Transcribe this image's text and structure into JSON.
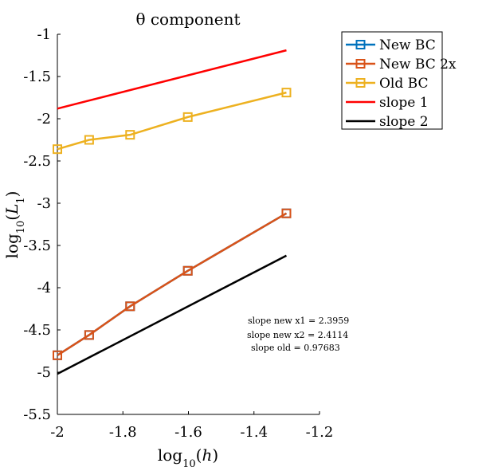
{
  "chart_data": {
    "type": "line",
    "title": "θ component",
    "xlabel": "log10(h)",
    "ylabel": "log10(L1)",
    "xlim": [
      -2,
      -1.2
    ],
    "ylim": [
      -5.5,
      -1
    ],
    "xticks": [
      -2,
      -1.8,
      -1.6,
      -1.4,
      -1.2
    ],
    "yticks": [
      -1,
      -1.5,
      -2,
      -2.5,
      -3,
      -3.5,
      -4,
      -4.5,
      -5,
      -5.5
    ],
    "xtick_labels": [
      "-2",
      "-1.8",
      "-1.6",
      "-1.4",
      "-1.2"
    ],
    "ytick_labels": [
      "-1",
      "-1.5",
      "-2",
      "-2.5",
      "-3",
      "-3.5",
      "-4",
      "-4.5",
      "-5",
      "-5.5"
    ],
    "grid": false,
    "legend_position": "top-right outside",
    "series": [
      {
        "name": "New BC",
        "color": "#0072BD",
        "marker": "square",
        "x": [
          -2.0,
          -1.903,
          -1.778,
          -1.602,
          -1.301
        ],
        "y": [
          -4.8,
          -4.56,
          -4.22,
          -3.8,
          -3.12
        ]
      },
      {
        "name": "New BC 2x",
        "color": "#D95319",
        "marker": "square",
        "x": [
          -2.0,
          -1.903,
          -1.778,
          -1.602,
          -1.301
        ],
        "y": [
          -4.8,
          -4.56,
          -4.22,
          -3.8,
          -3.12
        ]
      },
      {
        "name": "Old BC",
        "color": "#EDB120",
        "marker": "square",
        "x": [
          -2.0,
          -1.903,
          -1.778,
          -1.602,
          -1.301
        ],
        "y": [
          -2.36,
          -2.25,
          -2.19,
          -1.98,
          -1.69
        ]
      },
      {
        "name": "slope 1",
        "color": "#FF0000",
        "marker": "none",
        "x": [
          -2.0,
          -1.301
        ],
        "y": [
          -1.88,
          -1.19
        ]
      },
      {
        "name": "slope 2",
        "color": "#000000",
        "marker": "none",
        "x": [
          -2.0,
          -1.301
        ],
        "y": [
          -5.02,
          -3.62
        ]
      }
    ],
    "annotations": [
      "slope new x1 = 2.3959",
      "slope new x2 = 2.4114",
      "slope old = 0.97683"
    ]
  }
}
